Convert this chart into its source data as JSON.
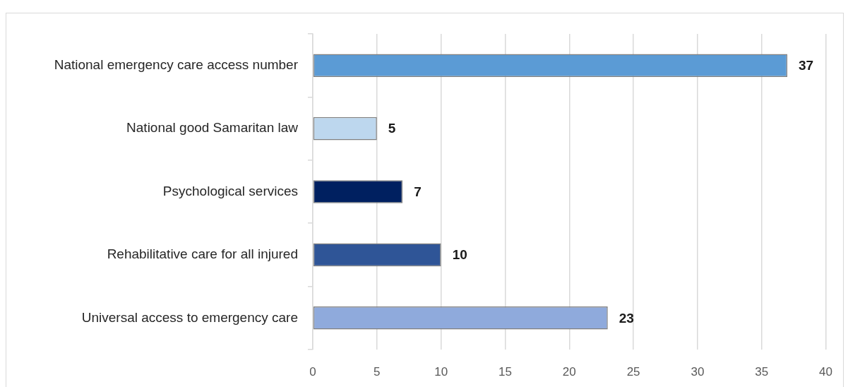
{
  "chart_data": {
    "type": "bar",
    "orientation": "horizontal",
    "categories": [
      "National emergency care access number",
      "National good Samaritan law",
      "Psychological services",
      "Rehabilitative care for all injured",
      "Universal access to emergency care"
    ],
    "values": [
      37,
      5,
      7,
      10,
      23
    ],
    "colors": [
      "#5b9bd5",
      "#bdd7ee",
      "#002060",
      "#2f5597",
      "#8faadc"
    ],
    "xlim": [
      0,
      40
    ],
    "xticks": [
      0,
      5,
      10,
      15,
      20,
      25,
      30,
      35,
      40
    ],
    "grid": "x",
    "data_labels": true
  }
}
